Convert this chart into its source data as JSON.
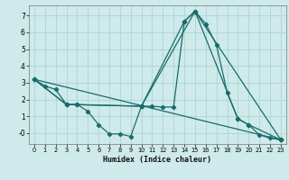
{
  "xlabel": "Humidex (Indice chaleur)",
  "background_color": "#ceeaea",
  "grid_color": "#aed4d4",
  "line_color": "#1a6b6b",
  "xlim": [
    -0.5,
    23.5
  ],
  "ylim": [
    -0.65,
    7.6
  ],
  "yticks": [
    0,
    1,
    2,
    3,
    4,
    5,
    6,
    7
  ],
  "ytick_labels": [
    "-0",
    "1",
    "2",
    "3",
    "4",
    "5",
    "6",
    "7"
  ],
  "xticks": [
    0,
    1,
    2,
    3,
    4,
    5,
    6,
    7,
    8,
    9,
    10,
    11,
    12,
    13,
    14,
    15,
    16,
    17,
    18,
    19,
    20,
    21,
    22,
    23
  ],
  "line1_x": [
    0,
    1,
    2,
    3,
    4,
    5,
    6,
    7,
    8,
    9,
    10,
    11,
    12,
    13,
    14,
    15,
    16,
    17,
    18,
    19,
    20,
    21,
    22,
    23
  ],
  "line1_y": [
    3.2,
    2.8,
    2.6,
    1.7,
    1.7,
    1.3,
    0.5,
    -0.05,
    -0.05,
    -0.2,
    1.6,
    1.6,
    1.55,
    1.55,
    6.65,
    7.25,
    6.5,
    5.25,
    2.4,
    0.85,
    0.5,
    -0.1,
    -0.3,
    -0.4
  ],
  "line2_x": [
    0,
    3,
    4,
    10,
    14,
    15,
    19,
    20,
    23
  ],
  "line2_y": [
    3.2,
    1.7,
    1.7,
    1.6,
    6.65,
    7.25,
    0.85,
    0.5,
    -0.4
  ],
  "line3_x": [
    0,
    23
  ],
  "line3_y": [
    3.2,
    -0.4
  ],
  "line4_x": [
    0,
    3,
    10,
    15,
    23
  ],
  "line4_y": [
    3.2,
    1.7,
    1.6,
    7.25,
    -0.4
  ]
}
